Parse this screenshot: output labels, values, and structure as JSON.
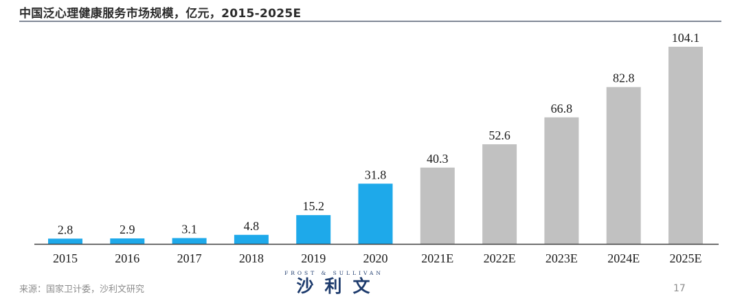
{
  "header": {
    "title": "中国泛心理健康服务市场规模，亿元，2015-2025E"
  },
  "chart_data": {
    "type": "bar",
    "title": "中国泛心理健康服务市场规模，亿元，2015-2025E",
    "xlabel": "",
    "ylabel": "",
    "categories": [
      "2015",
      "2016",
      "2017",
      "2018",
      "2019",
      "2020",
      "2021E",
      "2022E",
      "2023E",
      "2024E",
      "2025E"
    ],
    "values": [
      2.8,
      2.9,
      3.1,
      4.8,
      15.2,
      31.8,
      40.3,
      52.6,
      66.8,
      82.8,
      104.1
    ],
    "value_labels": [
      "2.8",
      "2.9",
      "3.1",
      "4.8",
      "15.2",
      "31.8",
      "40.3",
      "52.6",
      "66.8",
      "82.8",
      "104.1"
    ],
    "ylim": [
      0,
      104.1
    ],
    "grid": false,
    "colors": {
      "actual": "#1ea9ea",
      "forecast": "#c1c1c1",
      "axis": "#404040"
    },
    "forecast_from_index": 6
  },
  "footer": {
    "source": "来源：国家卫计委，沙利文研究",
    "logo_top": "FROST & SULLIVAN",
    "logo_main": "沙利文",
    "page_number": "17"
  }
}
